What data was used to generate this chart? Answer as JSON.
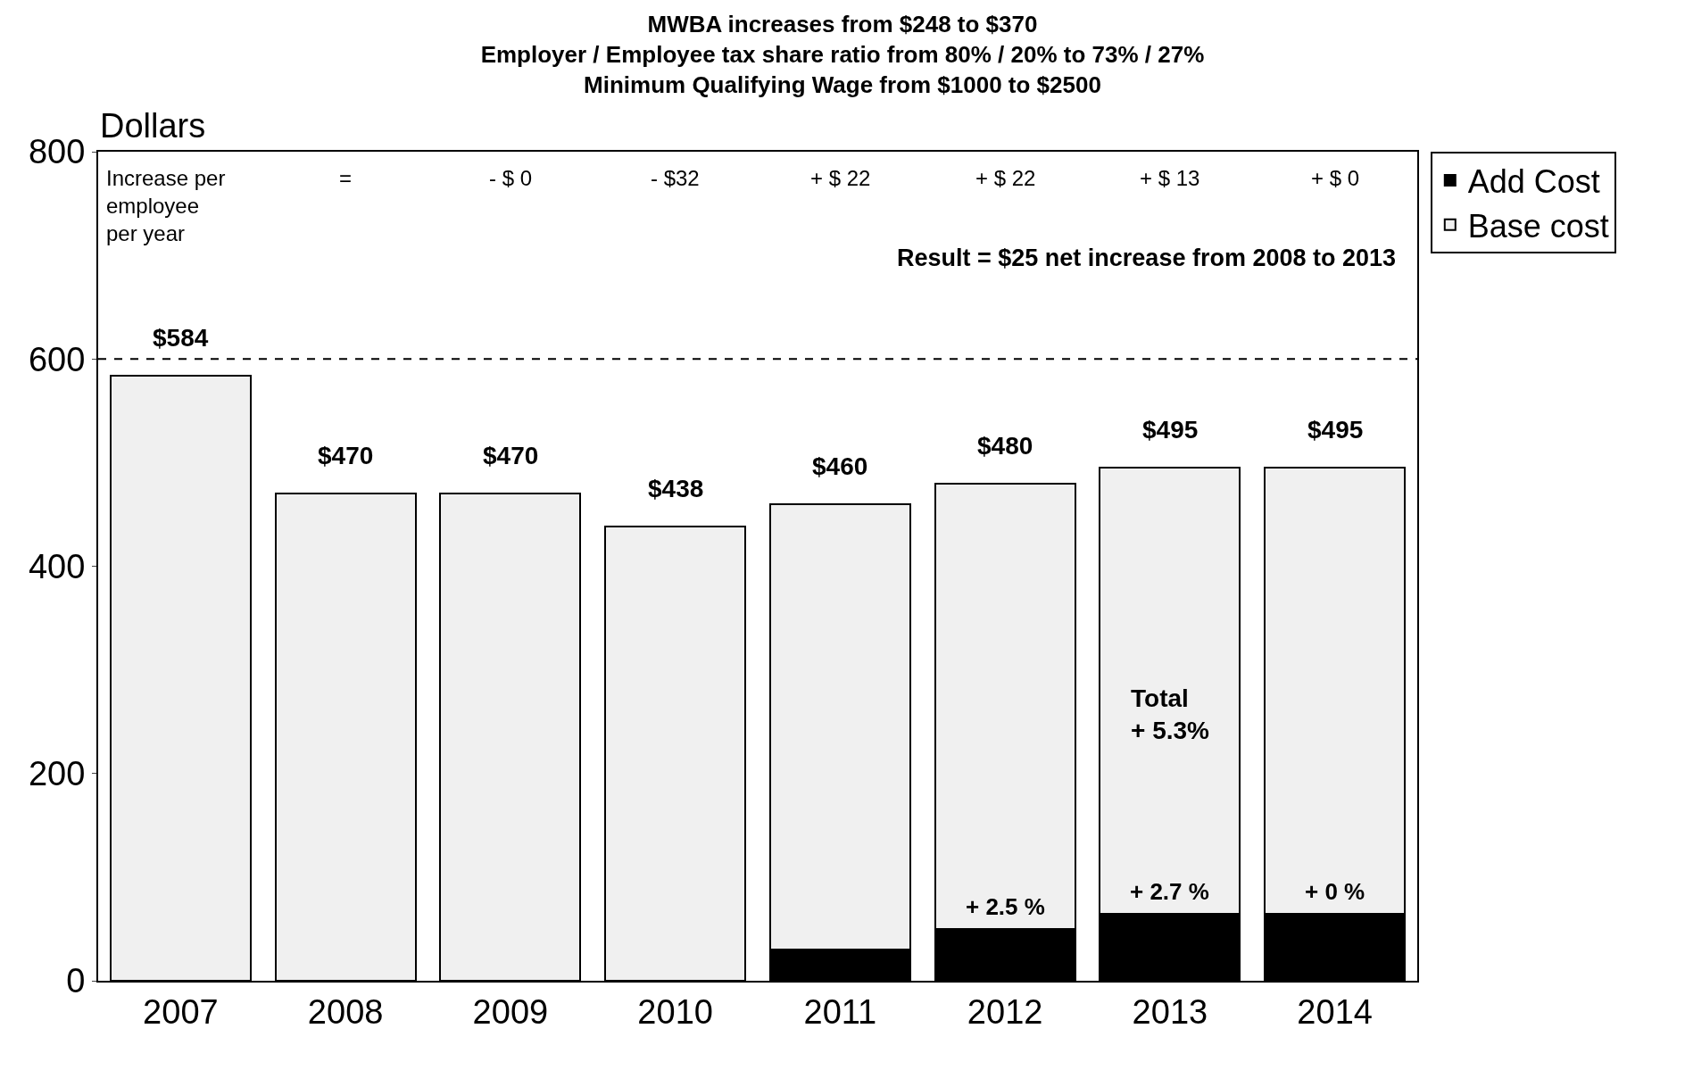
{
  "chart_data": {
    "type": "bar",
    "title": "MWBA increases from $248 to $370\nEmployer / Employee tax share ratio from 80% / 20% to 73% / 27%\nMinimum Qualifying Wage from $1000 to $2500",
    "ylabel": "Dollars",
    "categories": [
      "2007",
      "2008",
      "2009",
      "2010",
      "2011",
      "2012",
      "2013",
      "2014"
    ],
    "series": [
      {
        "name": "Add Cost",
        "color": "#000000",
        "values": [
          0,
          0,
          0,
          0,
          30,
          50,
          65,
          65
        ]
      },
      {
        "name": "Base cost",
        "color": "#f0f0f0",
        "values": [
          584,
          470,
          470,
          438,
          430,
          430,
          430,
          430
        ]
      }
    ],
    "stacked": true,
    "totals": [
      "$584",
      "$470",
      "$470",
      "$438",
      "$460",
      "$480",
      "$495",
      "$495"
    ],
    "ylim": [
      0,
      800
    ],
    "yticks": [
      0,
      200,
      400,
      600,
      800
    ],
    "grid": false,
    "legend": "top right",
    "ref_lines": [
      {
        "axis": "y",
        "value": 600,
        "line_style": "dashed",
        "color": "#000000"
      }
    ],
    "annotations": [
      "Increase per\nemployee\nper year",
      "=",
      "- $ 0",
      "- $32",
      "+ $ 22",
      "+ $ 22",
      "+ $ 13",
      "+ $ 0",
      "Result = $25 net increase from 2008 to 2013",
      "Total\n+ 5.3%",
      "+ 2.5 %",
      "+ 2.7 %",
      "+ 0 %"
    ]
  }
}
